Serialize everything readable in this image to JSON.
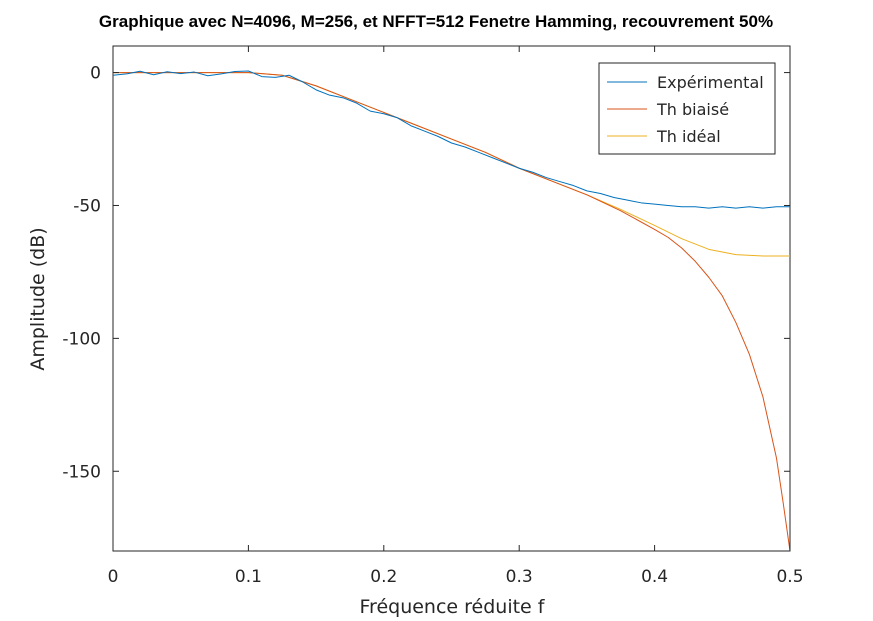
{
  "chart_data": {
    "type": "line",
    "title": "Graphique avec N=4096, M=256, et NFFT=512 Fenetre Hamming, recouvrement 50%",
    "xlabel": "Fréquence réduite f",
    "ylabel": "Amplitude (dB)",
    "xlim": [
      0,
      0.5
    ],
    "ylim": [
      -180,
      10
    ],
    "xticks": [
      0,
      0.1,
      0.2,
      0.3,
      0.4,
      0.5
    ],
    "xtick_labels": [
      "0",
      "0.1",
      "0.2",
      "0.3",
      "0.4",
      "0.5"
    ],
    "yticks": [
      0,
      -50,
      -100,
      -150
    ],
    "ytick_labels": [
      "0",
      "-50",
      "-100",
      "-150"
    ],
    "grid": false,
    "legend_position": "top-right",
    "series": [
      {
        "name": "Expérimental",
        "color": "#0072BD",
        "x": [
          0,
          0.01,
          0.02,
          0.03,
          0.04,
          0.05,
          0.06,
          0.07,
          0.08,
          0.09,
          0.1,
          0.11,
          0.12,
          0.13,
          0.14,
          0.15,
          0.16,
          0.17,
          0.18,
          0.19,
          0.2,
          0.21,
          0.22,
          0.23,
          0.24,
          0.25,
          0.26,
          0.27,
          0.28,
          0.29,
          0.3,
          0.31,
          0.32,
          0.33,
          0.34,
          0.35,
          0.36,
          0.37,
          0.38,
          0.39,
          0.4,
          0.41,
          0.42,
          0.43,
          0.44,
          0.45,
          0.46,
          0.47,
          0.48,
          0.49,
          0.5
        ],
        "y": [
          -1,
          -0.5,
          0.5,
          -0.8,
          0.3,
          -0.4,
          0.2,
          -1.2,
          -0.5,
          0.4,
          0.6,
          -1.5,
          -1.8,
          -1.0,
          -3.5,
          -6.5,
          -8.5,
          -9.5,
          -11.5,
          -14.5,
          -15.5,
          -17,
          -20,
          -22,
          -24,
          -26.5,
          -28,
          -30,
          -32,
          -34,
          -36,
          -37.5,
          -39.5,
          -41,
          -42.5,
          -44.5,
          -45.5,
          -47,
          -48,
          -49,
          -49.5,
          -50,
          -50.5,
          -50.5,
          -51,
          -50.5,
          -51,
          -50.5,
          -51,
          -50.5,
          -50.5
        ]
      },
      {
        "name": "Th biaisé",
        "color": "#D95319",
        "x": [
          0,
          0.05,
          0.1,
          0.125,
          0.15,
          0.175,
          0.2,
          0.225,
          0.25,
          0.275,
          0.3,
          0.325,
          0.35,
          0.375,
          0.4,
          0.41,
          0.42,
          0.43,
          0.44,
          0.45,
          0.46,
          0.47,
          0.48,
          0.49,
          0.495,
          0.5
        ],
        "y": [
          0,
          0,
          0,
          -1,
          -5,
          -10,
          -15,
          -20,
          -25,
          -30,
          -36,
          -41,
          -46,
          -52,
          -59,
          -62,
          -66,
          -71,
          -77,
          -84,
          -94,
          -106,
          -122,
          -145,
          -162,
          -180
        ]
      },
      {
        "name": "Th idéal",
        "color": "#EDB120",
        "x": [
          0,
          0.05,
          0.1,
          0.125,
          0.15,
          0.175,
          0.2,
          0.225,
          0.25,
          0.275,
          0.3,
          0.325,
          0.35,
          0.375,
          0.4,
          0.42,
          0.44,
          0.46,
          0.48,
          0.5
        ],
        "y": [
          0,
          0,
          0,
          -1,
          -5,
          -10,
          -15,
          -20,
          -25,
          -30,
          -36,
          -41,
          -46,
          -51.5,
          -57.5,
          -62.5,
          -66.5,
          -68.5,
          -69,
          -69
        ]
      }
    ]
  }
}
